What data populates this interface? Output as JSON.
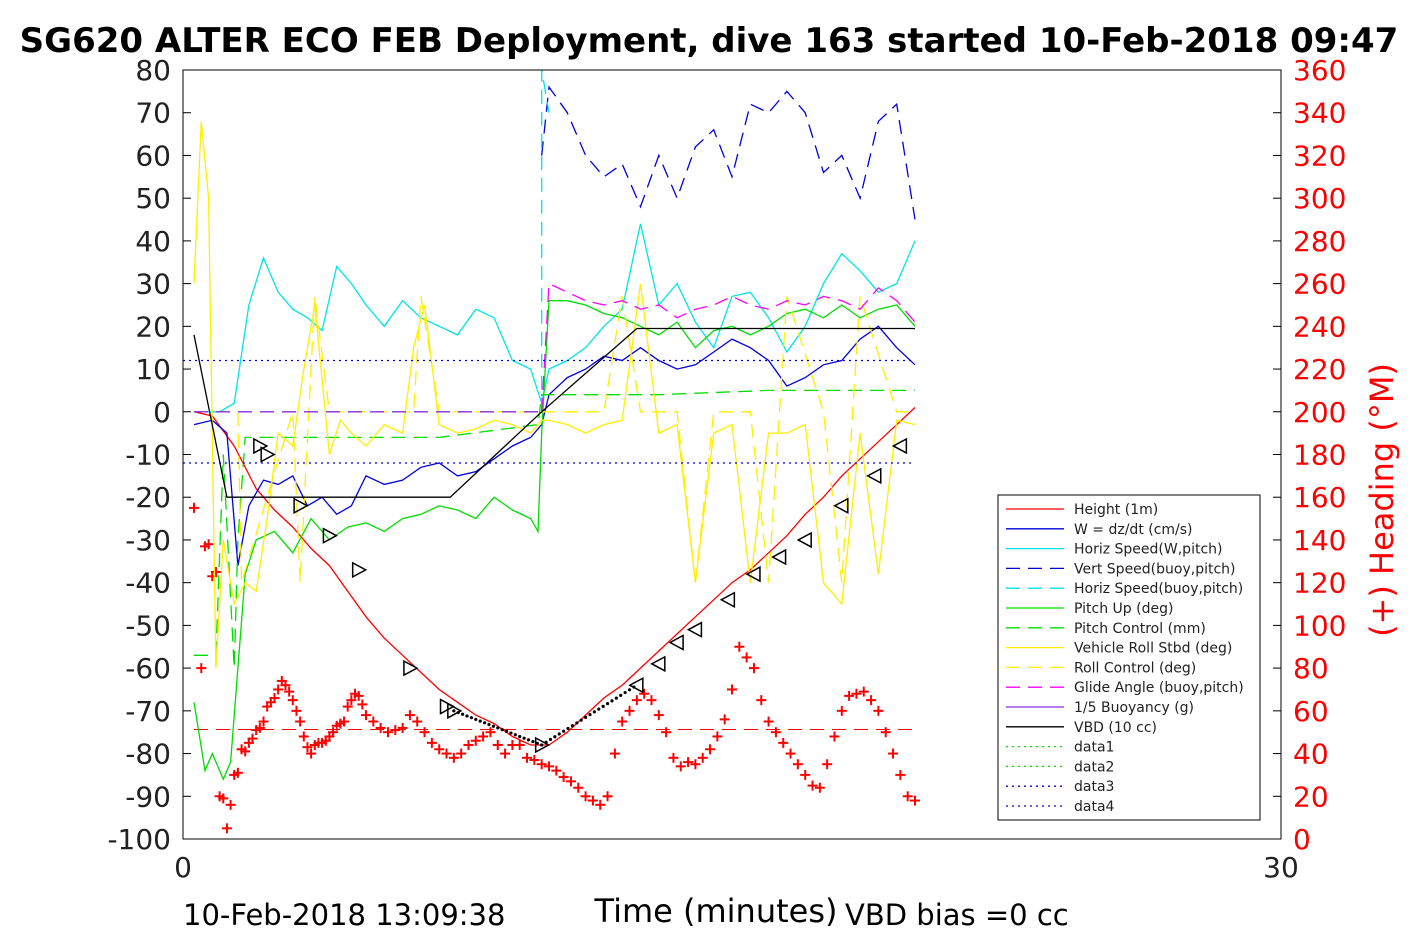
{
  "chart_data": {
    "type": "line",
    "title": "SG620 ALTER ECO FEB Deployment, dive 163 started 10-Feb-2018 09:47",
    "xlabel": "Time (minutes)",
    "ylabel_right": "(+) Heading (°M)",
    "xlim": [
      0,
      30
    ],
    "ylim": [
      -100,
      80
    ],
    "ylim_right": [
      0,
      360
    ],
    "x_ticks": [
      "0",
      "30"
    ],
    "y_ticks": [
      "80",
      "70",
      "60",
      "50",
      "40",
      "30",
      "20",
      "10",
      "0",
      "-10",
      "-20",
      "-30",
      "-40",
      "-50",
      "-60",
      "-70",
      "-80",
      "-90",
      "-100"
    ],
    "y_ticks_right": [
      "360",
      "340",
      "320",
      "300",
      "280",
      "260",
      "240",
      "220",
      "200",
      "180",
      "160",
      "140",
      "120",
      "100",
      "80",
      "60",
      "40",
      "20",
      "0"
    ],
    "grid": false,
    "legend_position": "lower-right",
    "footer_left": "10-Feb-2018 13:09:38",
    "footer_right": "VBD bias =0 cc",
    "colors": {
      "red": "#ff0000",
      "blue": "#0000dd",
      "cyan": "#00e5e5",
      "green": "#00dd00",
      "yellow": "#ffee00",
      "magenta": "#ff00ff",
      "purple": "#8a2be2",
      "black": "#000000"
    },
    "legend": [
      {
        "name": "Height (1m)",
        "color": "#ff0000",
        "dash": "solid"
      },
      {
        "name": "W = dz/dt (cm/s)",
        "color": "#0000dd",
        "dash": "solid"
      },
      {
        "name": "Horiz Speed(W,pitch)",
        "color": "#00e5e5",
        "dash": "solid"
      },
      {
        "name": "Vert Speed(buoy,pitch)",
        "color": "#0000dd",
        "dash": "dashed"
      },
      {
        "name": "Horiz Speed(buoy,pitch)",
        "color": "#00e5e5",
        "dash": "dashed"
      },
      {
        "name": "Pitch Up (deg)",
        "color": "#00dd00",
        "dash": "solid"
      },
      {
        "name": "Pitch Control (mm)",
        "color": "#00dd00",
        "dash": "dashed"
      },
      {
        "name": "Vehicle Roll Stbd (deg)",
        "color": "#ffee00",
        "dash": "solid"
      },
      {
        "name": "Roll Control (deg)",
        "color": "#ffee00",
        "dash": "dashed"
      },
      {
        "name": "Glide Angle (buoy,pitch)",
        "color": "#ff00ff",
        "dash": "dashed"
      },
      {
        "name": "1/5 Buoyancy (g)",
        "color": "#8a2be2",
        "dash": "solid"
      },
      {
        "name": "VBD (10 cc)",
        "color": "#000000",
        "dash": "solid"
      },
      {
        "name": "data1",
        "color": "#00dd00",
        "dash": "dotted"
      },
      {
        "name": "data2",
        "color": "#00dd00",
        "dash": "dotted"
      },
      {
        "name": "data3",
        "color": "#0000dd",
        "dash": "dotted"
      },
      {
        "name": "data4",
        "color": "#0000dd",
        "dash": "dotted"
      }
    ],
    "series": [
      {
        "name": "Height (1m)",
        "color": "#ff0000",
        "dash": "solid",
        "x": [
          0.3,
          0.8,
          1.4,
          2,
          2.5,
          3,
          3.5,
          4,
          4.5,
          5,
          5.5,
          6,
          6.5,
          7,
          7.5,
          8,
          8.5,
          9,
          9.5,
          10,
          10.5,
          11,
          11.5,
          12,
          12.5,
          13,
          13.5,
          14,
          14.5,
          15,
          15.5,
          16,
          16.5,
          17,
          17.5,
          18,
          18.5,
          19,
          19.5,
          20
        ],
        "y": [
          0,
          -1,
          -8,
          -18,
          -23,
          -27,
          -32,
          -36,
          -42,
          -48,
          -53,
          -57,
          -61,
          -65,
          -68,
          -71,
          -73,
          -76,
          -78,
          -78,
          -75,
          -71,
          -67,
          -64,
          -60,
          -56,
          -52,
          -48,
          -44,
          -40,
          -37,
          -33,
          -29,
          -24,
          -20,
          -15,
          -11,
          -7,
          -3,
          1
        ]
      },
      {
        "name": "W = dz/dt (cm/s)",
        "color": "#0000dd",
        "dash": "solid",
        "x": [
          0.3,
          0.8,
          1.2,
          1.5,
          1.8,
          2.2,
          2.6,
          3,
          3.4,
          3.8,
          4.2,
          4.6,
          5,
          5.5,
          6,
          6.5,
          7,
          7.5,
          8,
          8.5,
          9,
          9.5,
          9.8,
          10,
          10.5,
          11,
          11.5,
          12,
          12.5,
          13,
          13.5,
          14,
          14.5,
          15,
          15.5,
          16,
          16.5,
          17,
          17.5,
          18,
          18.5,
          19,
          19.5,
          20
        ],
        "y": [
          -3,
          -2,
          -5,
          -36,
          -22,
          -16,
          -17,
          -15,
          -22,
          -20,
          -24,
          -22,
          -15,
          -17,
          -16,
          -13,
          -12,
          -15,
          -14,
          -11,
          -8,
          -6,
          -3,
          4,
          8,
          10,
          13,
          12,
          15,
          12,
          10,
          11,
          14,
          17,
          15,
          12,
          6,
          8,
          11,
          12,
          17,
          20,
          15,
          11
        ]
      },
      {
        "name": "Horiz Speed(W,pitch)",
        "color": "#00e5e5",
        "dash": "solid",
        "x": [
          0.3,
          0.6,
          1,
          1.4,
          1.8,
          2.2,
          2.6,
          3,
          3.4,
          3.8,
          4.2,
          4.6,
          5,
          5.5,
          6,
          6.5,
          7,
          7.5,
          8,
          8.5,
          9,
          9.5,
          9.8,
          10,
          10.5,
          11,
          11.5,
          12,
          12.5,
          13,
          13.5,
          14,
          14.5,
          15,
          15.5,
          16,
          16.5,
          17,
          17.5,
          18,
          18.5,
          19,
          19.5,
          20
        ],
        "y": [
          0,
          0,
          0,
          2,
          25,
          36,
          28,
          24,
          22,
          19,
          34,
          30,
          25,
          20,
          26,
          22,
          20,
          18,
          24,
          22,
          12,
          10,
          2,
          10,
          12,
          15,
          20,
          24,
          44,
          25,
          30,
          21,
          15,
          27,
          28,
          22,
          14,
          20,
          30,
          37,
          33,
          28,
          30,
          40
        ]
      },
      {
        "name": "Vert Speed(buoy,pitch)",
        "color": "#0000dd",
        "dash": "dashed",
        "x": [
          9.8,
          10,
          10.5,
          11,
          11.5,
          12,
          12.5,
          13,
          13.5,
          14,
          14.5,
          15,
          15.5,
          16,
          16.5,
          17,
          17.5,
          18,
          18.5,
          19,
          19.5,
          20
        ],
        "y": [
          60,
          76,
          70,
          60,
          55,
          58,
          48,
          60,
          50,
          62,
          66,
          55,
          72,
          70,
          75,
          70,
          56,
          60,
          50,
          68,
          72,
          45
        ]
      },
      {
        "name": "Horiz Speed(buoy,pitch)",
        "color": "#00e5e5",
        "dash": "dashed",
        "x": [
          9.8,
          9.8,
          10
        ],
        "y": [
          0,
          80,
          70
        ]
      },
      {
        "name": "Pitch Up (deg)",
        "color": "#00dd00",
        "dash": "solid",
        "x": [
          0.3,
          0.6,
          0.8,
          1.1,
          1.3,
          1.5,
          1.7,
          2,
          2.5,
          3,
          3.5,
          4,
          4.5,
          5,
          5.5,
          6,
          6.5,
          7,
          7.5,
          8,
          8.5,
          9,
          9.5,
          9.7,
          9.8,
          10,
          10.5,
          11,
          11.5,
          12,
          12.5,
          13,
          13.5,
          14,
          14.5,
          15,
          15.5,
          16,
          16.5,
          17,
          17.5,
          18,
          18.5,
          19,
          19.5,
          20
        ],
        "y": [
          -68,
          -84,
          -80,
          -86,
          -82,
          -60,
          -38,
          -30,
          -28,
          -33,
          -25,
          -30,
          -27,
          -26,
          -28,
          -25,
          -24,
          -22,
          -23,
          -25,
          -20,
          -23,
          -25,
          -28,
          -5,
          26,
          26,
          25,
          23,
          22,
          20,
          18,
          21,
          15,
          19,
          20,
          18,
          20,
          23,
          24,
          22,
          25,
          22,
          24,
          25,
          20
        ]
      },
      {
        "name": "Pitch Control (mm)",
        "color": "#00dd00",
        "dash": "dashed",
        "x": [
          0.3,
          0.9,
          1.1,
          1.4,
          1.5,
          1.7,
          4,
          7,
          9.7,
          9.8,
          13,
          16,
          20
        ],
        "y": [
          -57,
          -57,
          -10,
          -60,
          -30,
          -6,
          -6,
          -6,
          -3,
          4,
          4,
          5,
          5
        ]
      },
      {
        "name": "Vehicle Roll Stbd (deg)",
        "color": "#ffee00",
        "dash": "solid",
        "x": [
          0.3,
          0.5,
          0.7,
          0.9,
          1.1,
          1.4,
          1.7,
          2,
          2.3,
          2.6,
          3,
          3.3,
          3.6,
          4,
          4.3,
          4.6,
          5,
          5.5,
          6,
          6.3,
          6.6,
          7,
          7.5,
          8,
          8.5,
          9,
          9.5,
          9.8,
          10,
          10.5,
          11,
          11.5,
          12,
          12.5,
          13,
          13.5,
          14,
          14.5,
          15,
          15.5,
          16,
          16.5,
          17,
          17.5,
          18,
          18.5,
          19,
          19.5,
          20
        ],
        "y": [
          30,
          68,
          50,
          -60,
          -30,
          -45,
          -40,
          -42,
          -25,
          -5,
          -8,
          10,
          25,
          -10,
          -2,
          -5,
          -8,
          -3,
          -5,
          15,
          25,
          -3,
          -5,
          -4,
          -2,
          -3,
          -5,
          -2,
          -2,
          -3,
          -5,
          -3,
          -2,
          30,
          -5,
          -3,
          -40,
          -5,
          -3,
          -40,
          -5,
          -5,
          -3,
          -40,
          -45,
          -5,
          -38,
          -2,
          -3
        ]
      },
      {
        "name": "Roll Control (deg)",
        "color": "#ffee00",
        "dash": "dashed",
        "x": [
          0.3,
          1.5,
          1.6,
          3,
          3.2,
          3.6,
          4,
          6.3,
          6.5,
          7,
          8,
          9.8,
          11.5,
          12,
          12.5,
          13.5,
          14,
          14.5,
          15.5,
          16,
          16.5,
          17.5,
          18,
          18.5,
          19.5,
          20
        ],
        "y": [
          0,
          0,
          -40,
          0,
          -40,
          27,
          0,
          0,
          27,
          0,
          0,
          0,
          0,
          27,
          0,
          0,
          -40,
          0,
          0,
          -40,
          27,
          0,
          -40,
          27,
          0,
          0
        ]
      },
      {
        "name": "Glide Angle (buoy,pitch)",
        "color": "#ff00ff",
        "dash": "dashed",
        "x": [
          9.8,
          10,
          10.5,
          11,
          11.5,
          12,
          12.5,
          13,
          13.5,
          14,
          14.5,
          15,
          15.5,
          16,
          16.5,
          17,
          17.5,
          18,
          18.5,
          19,
          19.5,
          20
        ],
        "y": [
          0,
          30,
          28,
          26,
          25,
          26,
          24,
          25,
          22,
          24,
          25,
          27,
          25,
          24,
          26,
          25,
          27,
          26,
          24,
          29,
          26,
          21
        ]
      },
      {
        "name": "1/5 Buoyancy (g)",
        "color": "#8a2be2",
        "dash": "dashed",
        "x": [
          0.3,
          9.8
        ],
        "y": [
          0,
          0
        ]
      },
      {
        "name": "VBD (10 cc)",
        "color": "#000000",
        "dash": "solid",
        "x": [
          0.3,
          1.2,
          7.3,
          9.8,
          12.4,
          20
        ],
        "y": [
          18,
          -20,
          -20,
          0,
          19.5,
          19.5
        ]
      },
      {
        "name": "data1",
        "color": "#00dd00",
        "dash": "dotted",
        "x": [],
        "y": []
      },
      {
        "name": "data2",
        "color": "#00dd00",
        "dash": "dotted",
        "x": [],
        "y": []
      },
      {
        "name": "data3",
        "color": "#0000dd",
        "dash": "dotted",
        "x": [
          0,
          20
        ],
        "y": [
          12,
          12
        ]
      },
      {
        "name": "data4",
        "color": "#0000dd",
        "dash": "dotted",
        "x": [
          0,
          20
        ],
        "y": [
          -12,
          -12
        ]
      }
    ],
    "heading_series": {
      "name": "(+) Heading (°M)",
      "color": "#ff0000",
      "marker": "+",
      "axis": "right",
      "x": [
        0.3,
        0.5,
        0.6,
        0.7,
        0.8,
        0.9,
        1.0,
        1.1,
        1.2,
        1.3,
        1.4,
        1.5,
        1.6,
        1.7,
        1.8,
        1.9,
        2.0,
        2.1,
        2.2,
        2.3,
        2.4,
        2.5,
        2.6,
        2.7,
        2.8,
        2.9,
        3.0,
        3.1,
        3.2,
        3.3,
        3.4,
        3.5,
        3.6,
        3.7,
        3.8,
        3.9,
        4.0,
        4.1,
        4.2,
        4.3,
        4.4,
        4.5,
        4.6,
        4.7,
        4.8,
        4.9,
        5.0,
        5.2,
        5.4,
        5.6,
        5.8,
        6.0,
        6.2,
        6.4,
        6.6,
        6.8,
        7.0,
        7.2,
        7.4,
        7.6,
        7.8,
        8.0,
        8.2,
        8.4,
        8.6,
        8.8,
        9.0,
        9.2,
        9.4,
        9.6,
        9.8,
        10.0,
        10.2,
        10.4,
        10.6,
        10.8,
        11.0,
        11.2,
        11.4,
        11.6,
        11.8,
        12.0,
        12.2,
        12.4,
        12.6,
        12.8,
        13.0,
        13.2,
        13.4,
        13.6,
        13.8,
        14.0,
        14.2,
        14.4,
        14.6,
        14.8,
        15.0,
        15.2,
        15.4,
        15.6,
        15.8,
        16.0,
        16.2,
        16.4,
        16.6,
        16.8,
        17.0,
        17.2,
        17.4,
        17.6,
        17.8,
        18.0,
        18.2,
        18.4,
        18.6,
        18.8,
        19.0,
        19.2,
        19.4,
        19.6,
        19.8,
        20.0
      ],
      "y": [
        155,
        80,
        137,
        138,
        123,
        125,
        20,
        19,
        5,
        16,
        30,
        31,
        42,
        41,
        45,
        47,
        51,
        52,
        55,
        62,
        64,
        66,
        70,
        74,
        72,
        69,
        65,
        60,
        55,
        48,
        43,
        40,
        44,
        45,
        45,
        46,
        48,
        50,
        53,
        54,
        55,
        62,
        65,
        68,
        67,
        63,
        58,
        55,
        52,
        50,
        51,
        52,
        58,
        55,
        50,
        45,
        42,
        40,
        38,
        40,
        44,
        46,
        48,
        50,
        44,
        40,
        44,
        44,
        38,
        37,
        35,
        34,
        32,
        29,
        27,
        24,
        20,
        18,
        16,
        20,
        40,
        55,
        60,
        65,
        68,
        65,
        58,
        50,
        38,
        34,
        36,
        35,
        38,
        42,
        48,
        56,
        70,
        90,
        85,
        80,
        65,
        55,
        50,
        45,
        40,
        35,
        30,
        25,
        24,
        35,
        48,
        60,
        67,
        68,
        69,
        65,
        60,
        50,
        40,
        30,
        20,
        18
      ]
    },
    "triangles": {
      "x": [
        2.1,
        2.3,
        3.2,
        4.0,
        4.8,
        6.2,
        7.2,
        7.4,
        9.8,
        12.4,
        13.0,
        13.5,
        14.0,
        14.9,
        15.6,
        16.3,
        17.0,
        18.0,
        18.9,
        19.6
      ],
      "y": [
        -8,
        -10,
        -22,
        -29,
        -37,
        -60,
        -69,
        -70,
        -78,
        -64,
        -59,
        -54,
        -51,
        -44,
        -38,
        -34,
        -30,
        -22,
        -15,
        -8
      ]
    }
  }
}
